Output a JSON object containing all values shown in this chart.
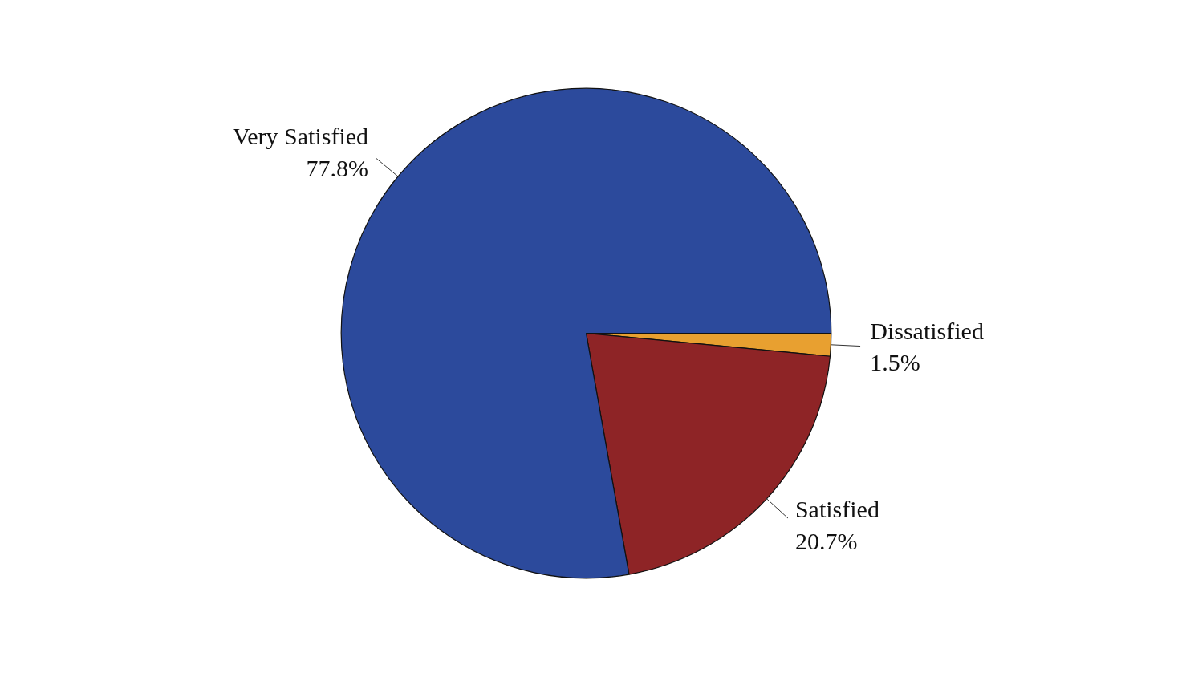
{
  "chart_data": {
    "type": "pie",
    "categories": [
      "Dissatisfied",
      "Satisfied",
      "Very Satisfied"
    ],
    "values": [
      1.5,
      20.7,
      77.8
    ],
    "colors": [
      "#e8a030",
      "#8e2426",
      "#2c4a9c"
    ],
    "value_labels": [
      "1.5%",
      "20.7%",
      "77.8%"
    ]
  }
}
